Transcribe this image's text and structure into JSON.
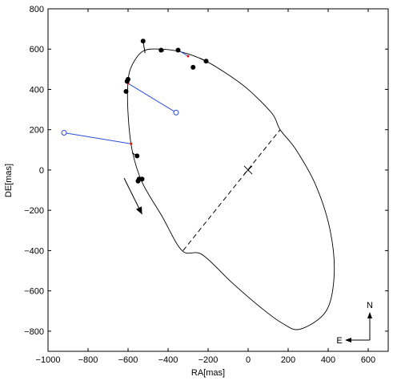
{
  "chart_data": {
    "type": "scatter",
    "title": "",
    "xlabel": "RA[mas]",
    "ylabel": "DE[mas]",
    "xlim": [
      -1000,
      700
    ],
    "ylim": [
      -900,
      800
    ],
    "xticks": [
      -1000,
      -800,
      -600,
      -400,
      -200,
      0,
      200,
      400,
      600
    ],
    "yticks": [
      -800,
      -600,
      -400,
      -200,
      0,
      200,
      400,
      600,
      800
    ],
    "xtick_labels": [
      "−1000",
      "−800",
      "−600",
      "−400",
      "−200",
      "0",
      "200",
      "400",
      "600"
    ],
    "ytick_labels": [
      "−800",
      "−600",
      "−400",
      "−200",
      "0",
      "200",
      "400",
      "600",
      "800"
    ],
    "grid": false,
    "orbit_ellipse": [
      [
        -525,
        590
      ],
      [
        -440,
        600
      ],
      [
        -330,
        585
      ],
      [
        -220,
        545
      ],
      [
        -110,
        480
      ],
      [
        0,
        400
      ],
      [
        120,
        280
      ],
      [
        160,
        200
      ],
      [
        240,
        100
      ],
      [
        340,
        -80
      ],
      [
        410,
        -300
      ],
      [
        430,
        -520
      ],
      [
        390,
        -700
      ],
      [
        260,
        -790
      ],
      [
        170,
        -760
      ],
      [
        60,
        -680
      ],
      [
        -80,
        -560
      ],
      [
        -230,
        -420
      ],
      [
        -330,
        -400
      ],
      [
        -430,
        -230
      ],
      [
        -530,
        -60
      ],
      [
        -580,
        100
      ],
      [
        -600,
        280
      ],
      [
        -600,
        440
      ],
      [
        -580,
        520
      ],
      [
        -525,
        590
      ]
    ],
    "line_of_nodes": [
      [
        -325,
        -400
      ],
      [
        160,
        200
      ]
    ],
    "center_marker": [
      0,
      0
    ],
    "observations": [
      [
        -525,
        640
      ],
      [
        -435,
        595
      ],
      [
        -350,
        595
      ],
      [
        -275,
        510
      ],
      [
        -210,
        540
      ],
      [
        -600,
        450
      ],
      [
        -605,
        440
      ],
      [
        -610,
        390
      ],
      [
        -555,
        70
      ],
      [
        -550,
        -55
      ],
      [
        -545,
        -45
      ],
      [
        -530,
        -45
      ]
    ],
    "residual_lines_black": [
      [
        [
          -525,
          640
        ],
        [
          -515,
          580
        ]
      ],
      [
        [
          -435,
          595
        ],
        [
          -420,
          590
        ]
      ],
      [
        [
          -210,
          540
        ],
        [
          -240,
          555
        ]
      ],
      [
        [
          -555,
          70
        ],
        [
          -580,
          85
        ]
      ]
    ],
    "residual_lines_blue": [
      [
        [
          -920,
          185
        ],
        [
          -585,
          130
        ]
      ],
      [
        [
          -360,
          285
        ],
        [
          -600,
          430
        ]
      ],
      [
        [
          -350,
          595
        ],
        [
          -300,
          565
        ]
      ]
    ],
    "open_markers": [
      [
        -920,
        185
      ],
      [
        -360,
        285
      ]
    ],
    "motion_arrow": [
      [
        -620,
        -40
      ],
      [
        -530,
        -220
      ]
    ],
    "compass": {
      "north_label": "N",
      "east_label": "E"
    }
  }
}
